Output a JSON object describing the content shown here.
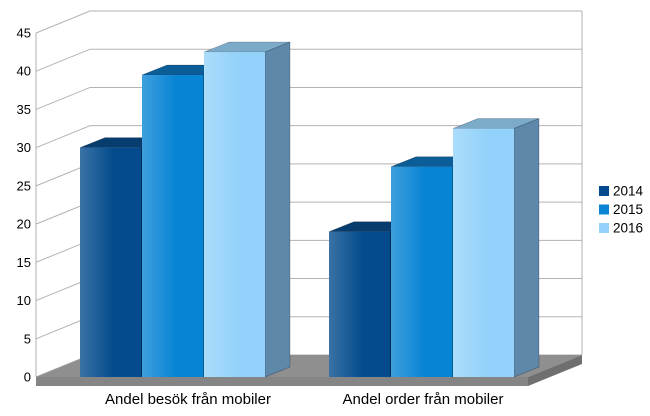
{
  "chart_data": {
    "type": "bar",
    "style_3d": true,
    "categories": [
      "Andel besök från mobiler",
      "Andel order från mobiler"
    ],
    "series": [
      {
        "name": "2014",
        "values": [
          30,
          19
        ],
        "color": "#034b8c",
        "top_color": "#063d6e",
        "side_color": "#042f58"
      },
      {
        "name": "2015",
        "values": [
          39.5,
          27.5
        ],
        "color": "#0884d4",
        "top_color": "#0b5d97",
        "side_color": "#09659f"
      },
      {
        "name": "2016",
        "values": [
          42.5,
          32.5
        ],
        "color": "#93d2fa",
        "top_color": "#7caac9",
        "side_color": "#5e88aa"
      }
    ],
    "ylim": [
      0,
      45
    ],
    "yticks": [
      0,
      5,
      10,
      15,
      20,
      25,
      30,
      35,
      40,
      45
    ],
    "grid": "horizontal-back-wall",
    "legend_position": "right"
  },
  "chart_style": {
    "background": "#ffffff",
    "grid_color": "#b3b3b3",
    "axis_color": "#b0b0b0",
    "floor_top_color": "#8f8f8f",
    "floor_front_color": "#858585",
    "floor_side_color": "#6f6f6f",
    "bar_edge_color": "rgba(0,10,30,0.3)",
    "text_color": "#000000"
  }
}
